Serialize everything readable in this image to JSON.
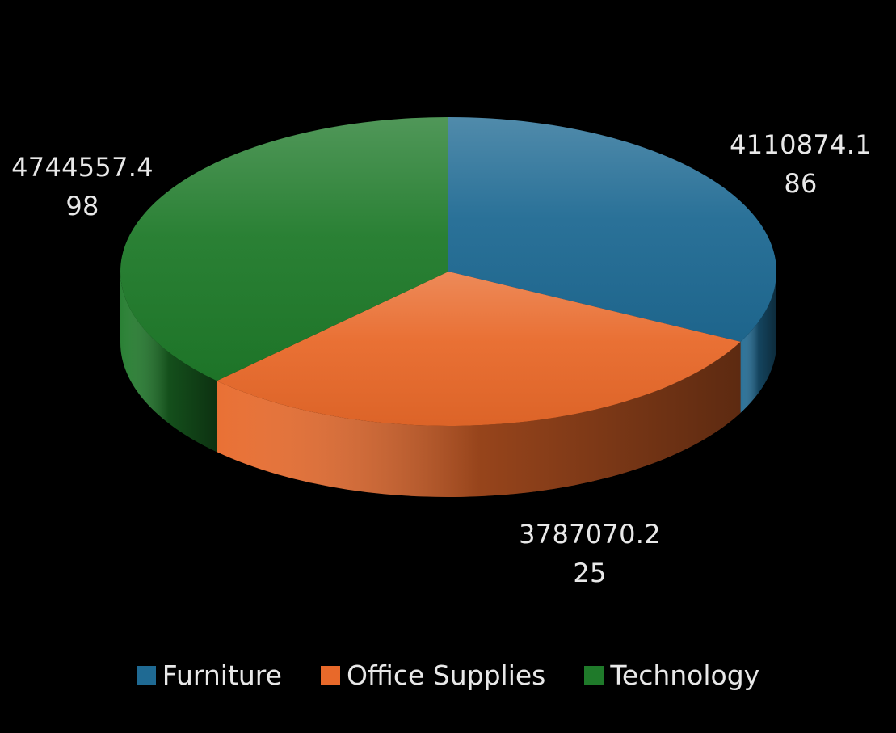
{
  "chart_data": {
    "type": "pie",
    "style": "3d",
    "title": "",
    "legend_position": "bottom",
    "series": [
      {
        "categories": [
          "Furniture",
          "Office Supplies",
          "Technology"
        ],
        "values": [
          4110874.186,
          3787070.225,
          4744557.498
        ],
        "labels": [
          [
            "4110874.1",
            "86"
          ],
          [
            "3787070.2",
            "25"
          ],
          [
            "4744557.4",
            "98"
          ]
        ]
      }
    ],
    "colors": [
      "#1f6a93",
      "#e8692a",
      "#1f7a2a"
    ],
    "dark_colors": [
      "#0b2f45",
      "#5a2710",
      "#0b4a14"
    ]
  },
  "legend": {
    "items": [
      {
        "label": "Furniture",
        "color": "#1f6a93"
      },
      {
        "label": "Office Supplies",
        "color": "#e8692a"
      },
      {
        "label": "Technology",
        "color": "#1f7a2a"
      }
    ]
  }
}
